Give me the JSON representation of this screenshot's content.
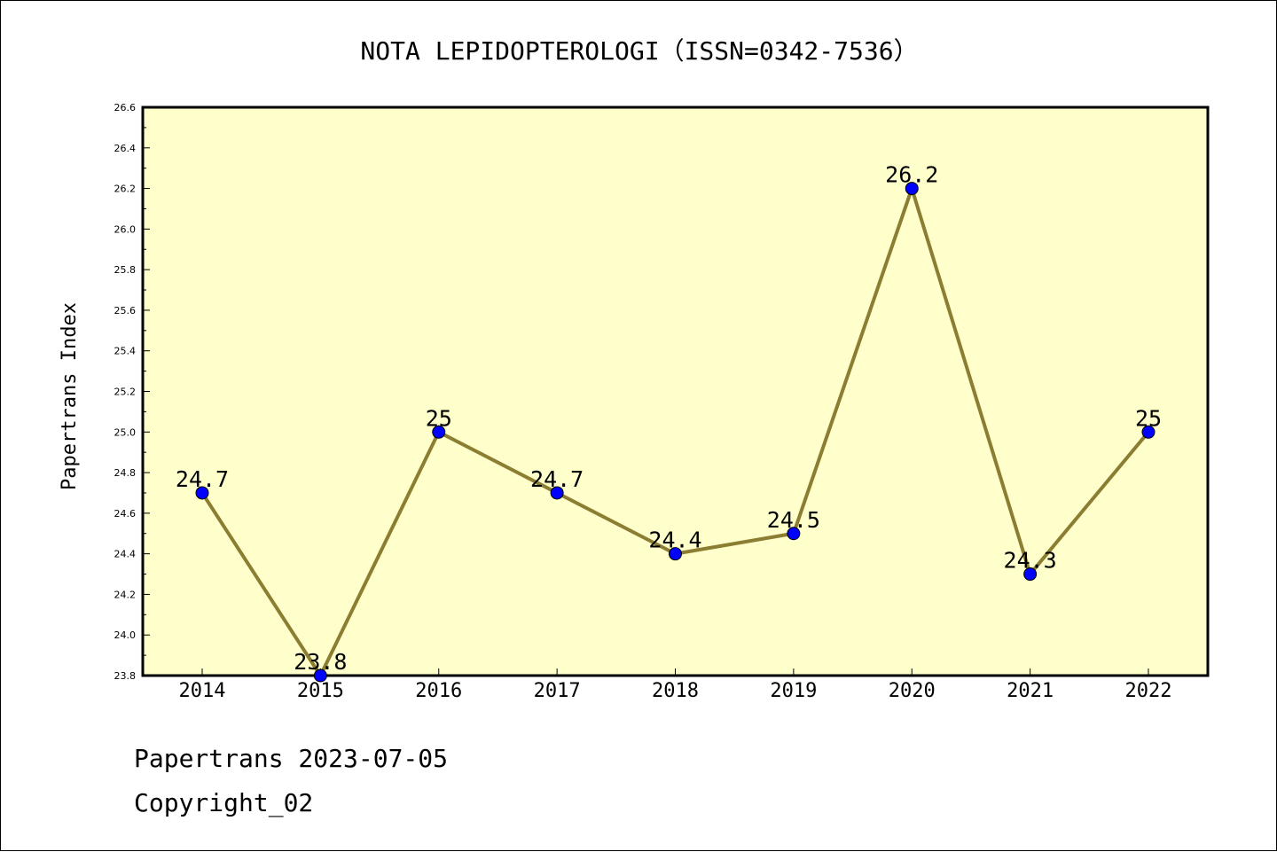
{
  "footer": {
    "line1": "Papertrans 2023-07-05",
    "line2": "Copyright_02"
  },
  "colors": {
    "plot_background": "#ffffcc",
    "line": "#8b7d32",
    "marker": "#0000ff"
  },
  "chart_data": {
    "type": "line",
    "title": "NOTA LEPIDOPTEROLOGI（ISSN=0342-7536）",
    "xlabel": "",
    "ylabel": "Papertrans Index",
    "categories": [
      "2014",
      "2015",
      "2016",
      "2017",
      "2018",
      "2019",
      "2020",
      "2021",
      "2022"
    ],
    "series": [
      {
        "values": [
          24.7,
          23.8,
          25.0,
          24.7,
          24.4,
          24.5,
          26.2,
          24.3,
          25.0
        ]
      }
    ],
    "data_labels": [
      "24.7",
      "23.8",
      "25",
      "24.7",
      "24.4",
      "24.5",
      "26.2",
      "24.3",
      "25"
    ],
    "ylim": [
      23.8,
      26.6
    ],
    "yticks": [
      "23.8",
      "24.0",
      "24.2",
      "24.4",
      "24.6",
      "24.8",
      "25.0",
      "25.2",
      "25.4",
      "25.6",
      "25.8",
      "26.0",
      "26.2",
      "26.4",
      "26.6"
    ],
    "grid": false,
    "legend": "none"
  }
}
